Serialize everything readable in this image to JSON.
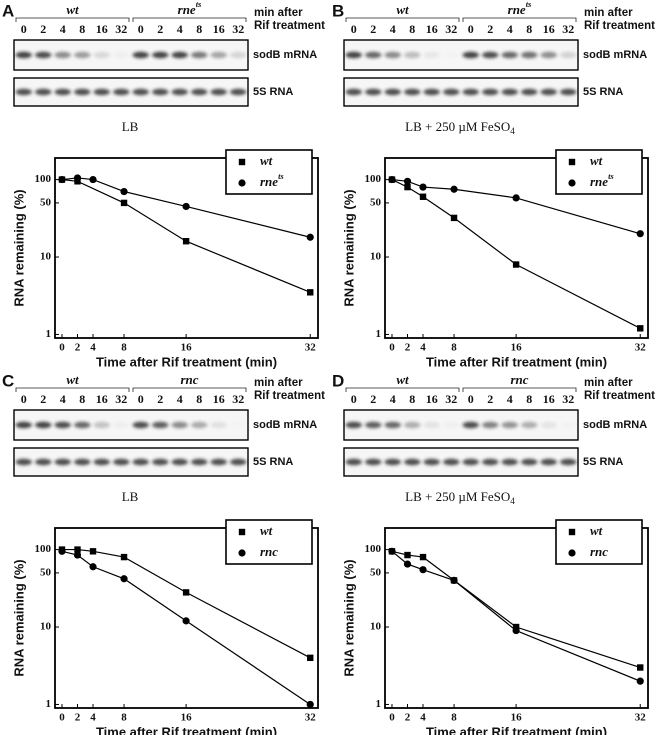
{
  "panels": [
    {
      "label": "A",
      "strains": [
        "wt",
        "rne"
      ],
      "strain_sups": [
        null,
        "ts"
      ],
      "lanes": [
        "0",
        "2",
        "4",
        "8",
        "16",
        "32"
      ],
      "gel_note": [
        "min after",
        "Rif treatment"
      ],
      "gel_rows": [
        "sodB mRNA",
        "5S RNA"
      ],
      "condition": "LB",
      "condition_sub": null
    },
    {
      "label": "B",
      "strains": [
        "wt",
        "rne"
      ],
      "strain_sups": [
        null,
        "ts"
      ],
      "lanes": [
        "0",
        "2",
        "4",
        "8",
        "16",
        "32"
      ],
      "gel_note": [
        "min after",
        "Rif treatment"
      ],
      "gel_rows": [
        "sodB mRNA",
        "5S RNA"
      ],
      "condition": "LB + 250 µM FeSO",
      "condition_sub": "4"
    },
    {
      "label": "C",
      "strains": [
        "wt",
        "rnc"
      ],
      "strain_sups": [
        null,
        null
      ],
      "lanes": [
        "0",
        "2",
        "4",
        "8",
        "16",
        "32"
      ],
      "gel_note": [
        "min after",
        "Rif treatment"
      ],
      "gel_rows": [
        "sodB mRNA",
        "5S RNA"
      ],
      "condition": "LB",
      "condition_sub": null
    },
    {
      "label": "D",
      "strains": [
        "wt",
        "rnc"
      ],
      "strain_sups": [
        null,
        null
      ],
      "lanes": [
        "0",
        "2",
        "4",
        "8",
        "16",
        "32"
      ],
      "gel_note": [
        "min after",
        "Rif treatment"
      ],
      "gel_rows": [
        "sodB mRNA",
        "5S RNA"
      ],
      "condition": "LB + 250 µM FeSO",
      "condition_sub": "4"
    }
  ],
  "chart_data": [
    {
      "type": "line",
      "xlabel": "Time after Rif treatment (min)",
      "ylabel": "RNA remaining (%)",
      "log_y": true,
      "legend": "upper right",
      "xlim": [
        -0.9,
        33
      ],
      "ylim": [
        0.9,
        190
      ],
      "xticks": [
        0,
        2,
        4,
        8,
        16,
        32
      ],
      "yticks": [
        1,
        10,
        50,
        100
      ],
      "series": [
        {
          "name": "wt",
          "name_sup": null,
          "marker": "square",
          "color": "#000000",
          "x": [
            0,
            2,
            8,
            16,
            32
          ],
          "values": [
            100,
            95,
            50,
            16,
            3.5
          ]
        },
        {
          "name": "rne",
          "name_sup": "ts",
          "marker": "circle",
          "color": "#000000",
          "x": [
            0,
            2,
            4,
            8,
            16,
            32
          ],
          "values": [
            100,
            105,
            100,
            70,
            45,
            18
          ]
        }
      ]
    },
    {
      "type": "line",
      "xlabel": "Time after Rif treatment (min)",
      "ylabel": "RNA remaining (%)",
      "log_y": true,
      "legend": "upper right",
      "xlim": [
        -0.9,
        33
      ],
      "ylim": [
        0.9,
        190
      ],
      "xticks": [
        0,
        2,
        4,
        8,
        16,
        32
      ],
      "yticks": [
        1,
        10,
        50,
        100
      ],
      "series": [
        {
          "name": "wt",
          "name_sup": null,
          "marker": "square",
          "color": "#000000",
          "x": [
            0,
            2,
            4,
            8,
            16,
            32
          ],
          "values": [
            100,
            80,
            60,
            32,
            8,
            1.2
          ]
        },
        {
          "name": "rne",
          "name_sup": "ts",
          "marker": "circle",
          "color": "#000000",
          "x": [
            0,
            2,
            4,
            8,
            16,
            32
          ],
          "values": [
            100,
            95,
            80,
            75,
            58,
            20
          ]
        }
      ]
    },
    {
      "type": "line",
      "xlabel": "Time after Rif treatment (min)",
      "ylabel": "RNA remaining (%)",
      "log_y": true,
      "legend": "upper right",
      "xlim": [
        -0.9,
        33
      ],
      "ylim": [
        0.9,
        190
      ],
      "xticks": [
        0,
        2,
        4,
        8,
        16,
        32
      ],
      "yticks": [
        1,
        10,
        50,
        100
      ],
      "series": [
        {
          "name": "wt",
          "name_sup": null,
          "marker": "square",
          "color": "#000000",
          "x": [
            0,
            2,
            4,
            8,
            16,
            32
          ],
          "values": [
            100,
            100,
            95,
            80,
            28,
            4
          ]
        },
        {
          "name": "rnc",
          "name_sup": null,
          "marker": "circle",
          "color": "#000000",
          "x": [
            0,
            2,
            4,
            8,
            16,
            32
          ],
          "values": [
            95,
            85,
            60,
            42,
            12,
            1
          ]
        }
      ]
    },
    {
      "type": "line",
      "xlabel": "Time after Rif treatment (min)",
      "ylabel": "RNA remaining (%)",
      "log_y": true,
      "legend": "upper right",
      "xlim": [
        -0.9,
        33
      ],
      "ylim": [
        0.9,
        190
      ],
      "xticks": [
        0,
        2,
        4,
        8,
        16,
        32
      ],
      "yticks": [
        1,
        10,
        50,
        100
      ],
      "series": [
        {
          "name": "wt",
          "name_sup": null,
          "marker": "square",
          "color": "#000000",
          "x": [
            0,
            2,
            4,
            8,
            16,
            32
          ],
          "values": [
            95,
            85,
            80,
            40,
            10,
            3
          ]
        },
        {
          "name": "rnc",
          "name_sup": null,
          "marker": "circle",
          "color": "#000000",
          "x": [
            0,
            2,
            4,
            8,
            16,
            32
          ],
          "values": [
            95,
            65,
            55,
            40,
            9,
            2
          ]
        }
      ]
    }
  ]
}
